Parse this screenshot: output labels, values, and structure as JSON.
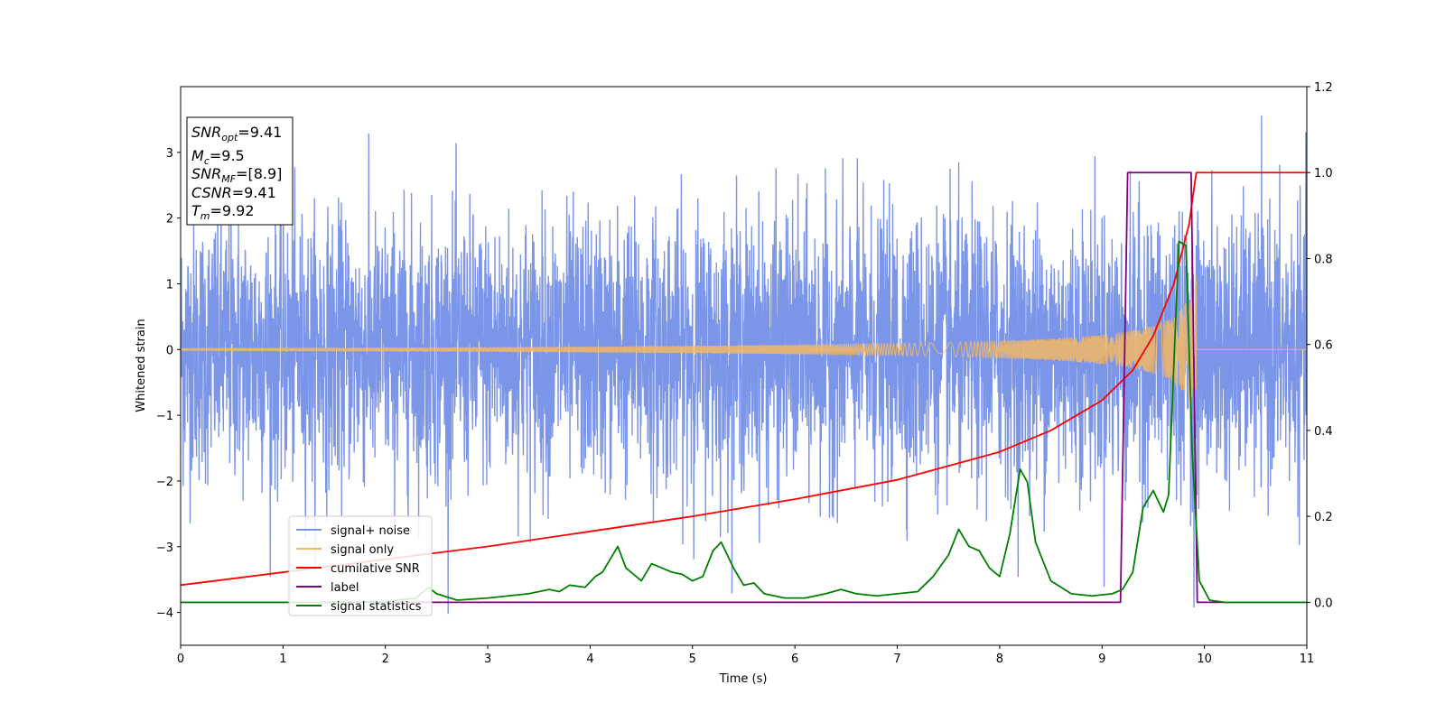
{
  "chart_data": {
    "type": "line",
    "xlabel": "Time (s)",
    "ylabel": "Whitened strain",
    "xlim": [
      0,
      11
    ],
    "ylim": [
      -4.5,
      4.0
    ],
    "y2lim": [
      -0.1,
      1.2
    ],
    "xticks": [
      "0",
      "1",
      "2",
      "3",
      "4",
      "5",
      "6",
      "7",
      "8",
      "9",
      "10",
      "11"
    ],
    "yticks": [
      "−4",
      "−3",
      "−2",
      "−1",
      "0",
      "1",
      "2",
      "3"
    ],
    "y2ticks": [
      "0.0",
      "0.2",
      "0.4",
      "0.6",
      "0.8",
      "1.0",
      "1.2"
    ],
    "grid": false,
    "legend_position": "lower-left",
    "info_box": {
      "snr_opt": {
        "sym": "SNR",
        "sub": "opt",
        "value": "=9.41"
      },
      "mc": {
        "sym": "M",
        "sub": "c",
        "value": "=9.5"
      },
      "snr_mf": {
        "sym": "SNR",
        "sub": "MF",
        "value": "=[8.9]"
      },
      "csnr": {
        "sym": "CSNR",
        "sub": "",
        "value": "=9.41"
      },
      "tm": {
        "sym": "T",
        "sub": "m",
        "value": "=9.92"
      }
    },
    "series": [
      {
        "name": "signal+ noise",
        "color": "#7b96e8",
        "axis": "left",
        "description_values": {
          "noise_std": 1.0,
          "t_end": 9.92
        }
      },
      {
        "name": "signal only",
        "color": "#f5b865",
        "axis": "left",
        "description_values": {
          "amp_start": 0.02,
          "amp_end": 1.2,
          "t_end": 9.92
        }
      },
      {
        "name": "cumilative SNR",
        "color": "#ff0000",
        "axis": "right",
        "x": [
          0,
          1,
          2,
          3,
          4,
          5,
          6,
          7,
          8,
          8.5,
          9,
          9.3,
          9.5,
          9.7,
          9.85,
          9.92,
          10,
          11
        ],
        "y": [
          0.04,
          0.07,
          0.1,
          0.13,
          0.165,
          0.2,
          0.24,
          0.285,
          0.35,
          0.4,
          0.47,
          0.54,
          0.62,
          0.74,
          0.88,
          1.0,
          1.0,
          1.0
        ]
      },
      {
        "name": "label",
        "color": "#800080",
        "axis": "right",
        "x": [
          0,
          9.18,
          9.25,
          9.87,
          9.93,
          11
        ],
        "y": [
          0.0,
          0.0,
          1.0,
          1.0,
          0.0,
          0.0
        ]
      },
      {
        "name": "signal statistics",
        "color": "#008000",
        "axis": "right",
        "x": [
          0,
          0.5,
          1.0,
          1.5,
          2.0,
          2.3,
          2.42,
          2.5,
          2.7,
          3.0,
          3.2,
          3.4,
          3.6,
          3.7,
          3.8,
          3.95,
          4.05,
          4.12,
          4.27,
          4.35,
          4.5,
          4.6,
          4.7,
          4.8,
          4.9,
          5.0,
          5.1,
          5.2,
          5.28,
          5.4,
          5.5,
          5.6,
          5.7,
          5.9,
          6.1,
          6.3,
          6.45,
          6.6,
          6.8,
          7.0,
          7.2,
          7.35,
          7.5,
          7.6,
          7.7,
          7.8,
          7.9,
          8.0,
          8.1,
          8.2,
          8.27,
          8.35,
          8.5,
          8.7,
          8.9,
          9.1,
          9.2,
          9.3,
          9.4,
          9.5,
          9.6,
          9.65,
          9.75,
          9.82,
          9.88,
          9.95,
          10.05,
          10.2,
          11
        ],
        "y": [
          0.0,
          0.0,
          0.0,
          0.0,
          0.002,
          0.01,
          0.035,
          0.02,
          0.005,
          0.01,
          0.015,
          0.02,
          0.03,
          0.025,
          0.04,
          0.035,
          0.06,
          0.07,
          0.13,
          0.08,
          0.05,
          0.09,
          0.08,
          0.07,
          0.065,
          0.05,
          0.06,
          0.12,
          0.14,
          0.08,
          0.04,
          0.045,
          0.02,
          0.01,
          0.01,
          0.02,
          0.03,
          0.02,
          0.015,
          0.02,
          0.025,
          0.06,
          0.11,
          0.17,
          0.13,
          0.12,
          0.08,
          0.06,
          0.16,
          0.31,
          0.28,
          0.14,
          0.05,
          0.02,
          0.015,
          0.02,
          0.03,
          0.07,
          0.22,
          0.26,
          0.21,
          0.25,
          0.84,
          0.83,
          0.35,
          0.05,
          0.005,
          0.0,
          0.0
        ]
      }
    ]
  }
}
